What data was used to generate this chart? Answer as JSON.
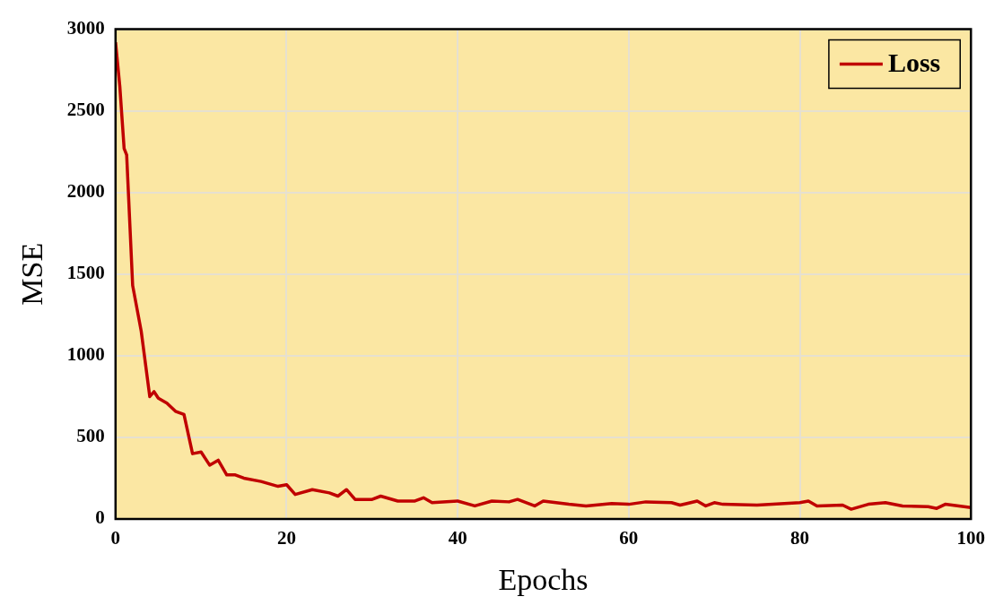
{
  "chart_data": {
    "type": "line",
    "xlabel": "Epochs",
    "ylabel": "MSE",
    "x": [
      0,
      0.5,
      1,
      1.3,
      2,
      3,
      4,
      4.5,
      5,
      6,
      7,
      8,
      9,
      10,
      11,
      12,
      13,
      14,
      15,
      17,
      19,
      20,
      21,
      23,
      25,
      26,
      27,
      28,
      30,
      31,
      33,
      35,
      36,
      37,
      40,
      42,
      44,
      46,
      47,
      49,
      50,
      53,
      55,
      58,
      60,
      62,
      65,
      66,
      68,
      69,
      70,
      71,
      75,
      80,
      81,
      82,
      85,
      86,
      88,
      90,
      92,
      95,
      96,
      97,
      100
    ],
    "series": [
      {
        "name": "Loss",
        "color": "#c00000",
        "values": [
          2920,
          2650,
          2270,
          2230,
          1430,
          1150,
          750,
          780,
          740,
          710,
          660,
          640,
          400,
          410,
          330,
          360,
          270,
          270,
          250,
          230,
          200,
          210,
          150,
          180,
          160,
          140,
          180,
          120,
          120,
          140,
          110,
          110,
          130,
          100,
          110,
          80,
          110,
          105,
          120,
          80,
          110,
          90,
          80,
          95,
          90,
          105,
          100,
          85,
          110,
          80,
          100,
          90,
          85,
          100,
          110,
          80,
          85,
          60,
          90,
          100,
          80,
          75,
          65,
          90,
          70
        ]
      }
    ],
    "xlim": [
      0,
      100
    ],
    "xticks": [
      0,
      20,
      40,
      60,
      80,
      100
    ],
    "ylim": [
      0,
      3000
    ],
    "yticks": [
      0,
      500,
      1000,
      1500,
      2000,
      2500,
      3000
    ],
    "grid": true,
    "legend": "top right",
    "marker": "none",
    "line_style": "solid"
  }
}
